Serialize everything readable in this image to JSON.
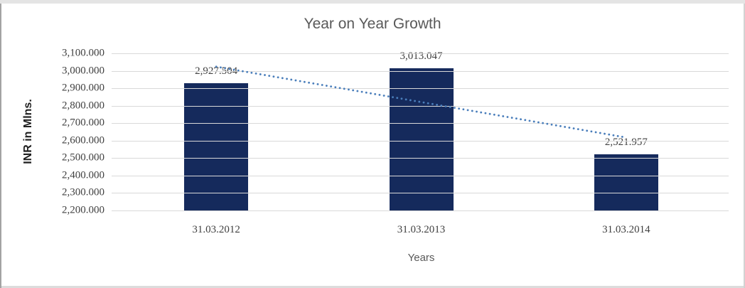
{
  "title": "Year on Year Growth",
  "y_axis_title": "INR in Mlns.",
  "x_axis_title": "Years",
  "colors": {
    "bar": "#152a5c",
    "trendline": "#4a7ebb",
    "gridline": "#d9d9d9",
    "title_text": "#595959",
    "tick_text": "#404040"
  },
  "chart_data": {
    "type": "bar",
    "title": "Year on Year Growth",
    "xlabel": "Years",
    "ylabel": "INR in Mlns.",
    "categories": [
      "31.03.2012",
      "31.03.2013",
      "31.03.2014"
    ],
    "values": [
      2927.504,
      3013.047,
      2521.957
    ],
    "data_labels": [
      "2,927.504",
      "3,013.047",
      "2,521.957"
    ],
    "ylim": [
      2200,
      3100
    ],
    "ytick_step": 100,
    "yticks": [
      {
        "value": 2200,
        "label": "2,200.000"
      },
      {
        "value": 2300,
        "label": "2,300.000"
      },
      {
        "value": 2400,
        "label": "2,400.000"
      },
      {
        "value": 2500,
        "label": "2,500.000"
      },
      {
        "value": 2600,
        "label": "2,600.000"
      },
      {
        "value": 2700,
        "label": "2,700.000"
      },
      {
        "value": 2800,
        "label": "2,800.000"
      },
      {
        "value": 2900,
        "label": "2,900.000"
      },
      {
        "value": 3000,
        "label": "3,000.000"
      },
      {
        "value": 3100,
        "label": "3,100.000"
      }
    ],
    "grid": true,
    "legend": false,
    "trendline": {
      "type": "linear",
      "style": "dotted",
      "y_start": 3023.65,
      "y_end": 2618.08
    }
  }
}
